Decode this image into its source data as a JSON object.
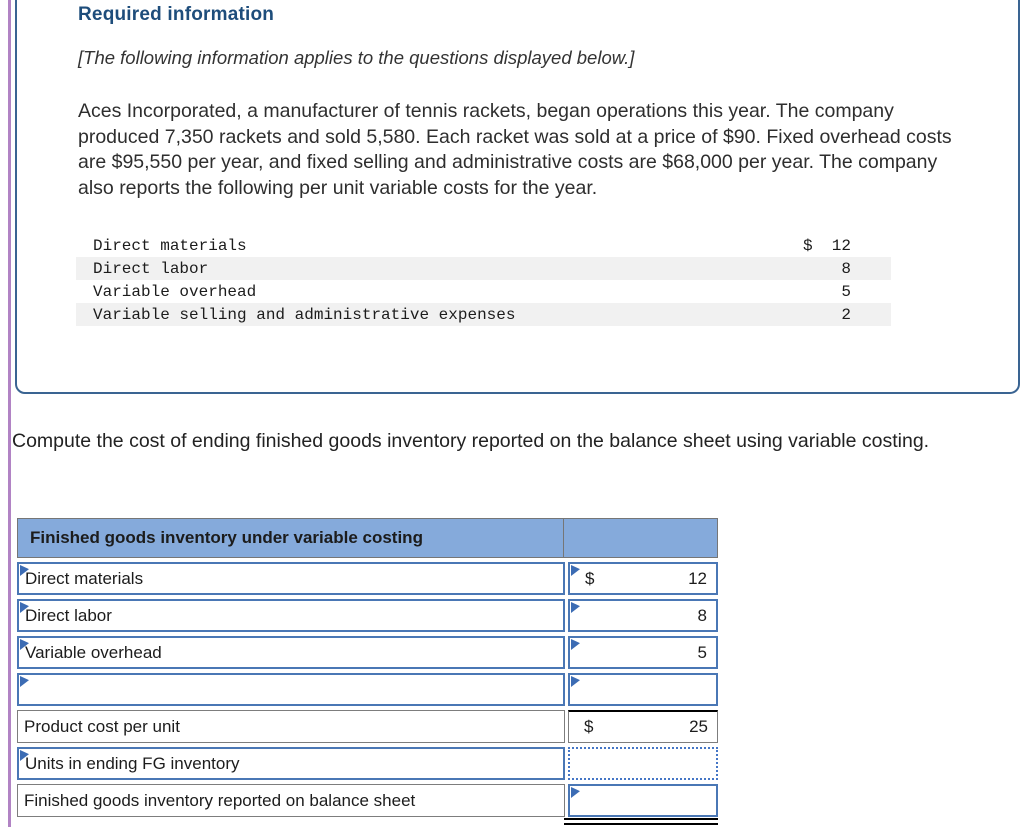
{
  "colors": {
    "box_border": "#3a6492",
    "title_navy": "#1e4d7b",
    "accent_purple": "#b183c4",
    "table_header_blue": "#85aadb",
    "input_cell_border_blue": "#4a77b5"
  },
  "required_info": {
    "title": "Required information",
    "note": "[The following information applies to the questions displayed below.]",
    "paragraph": "Aces Incorporated, a manufacturer of tennis rackets, began operations this year. The company produced 7,350 rackets and sold 5,580. Each racket was sold at a price of $90. Fixed overhead costs are $95,550 per year, and fixed selling and administrative costs are $68,000 per year. The company also reports the following per unit variable costs for the year.",
    "cost_rows": [
      {
        "label": "Direct materials",
        "currency": "$",
        "value": "12"
      },
      {
        "label": "Direct labor",
        "currency": "",
        "value": "8"
      },
      {
        "label": "Variable overhead",
        "currency": "",
        "value": "5"
      },
      {
        "label": "Variable selling and administrative expenses",
        "currency": "",
        "value": "2"
      }
    ]
  },
  "question": {
    "prompt": "Compute the cost of ending finished goods inventory reported on the balance sheet using variable costing."
  },
  "worksheet": {
    "header": "Finished goods inventory under variable costing",
    "rows": [
      {
        "label": "Direct materials",
        "currency": "$",
        "value": "12"
      },
      {
        "label": "Direct labor",
        "currency": "",
        "value": "8"
      },
      {
        "label": "Variable overhead",
        "currency": "",
        "value": "5"
      },
      {
        "label": "",
        "currency": "",
        "value": ""
      },
      {
        "label": "Product cost per unit",
        "currency": "$",
        "value": "25"
      },
      {
        "label": "Units in ending FG inventory",
        "currency": "",
        "value": ""
      },
      {
        "label": "Finished goods inventory reported on balance sheet",
        "currency": "",
        "value": ""
      }
    ]
  }
}
